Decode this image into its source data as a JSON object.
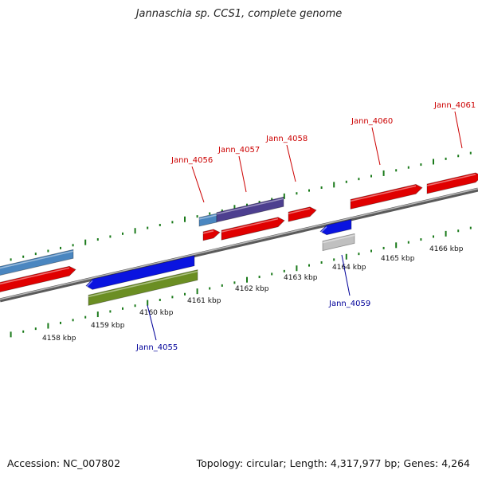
{
  "title": "Jannaschia sp. CCS1, complete genome",
  "accession": "Accession: NC_007802",
  "genome_info": "Topology: circular; Length: 4,317,977 bp; Genes: 4,264",
  "colors": {
    "backbone": "#8c8c8c",
    "ticks": "#1a7a1a",
    "label_forward": "#cc0000",
    "label_reverse": "#000099",
    "gene_red": "#e00000",
    "gene_blue": "#0a14e0",
    "gene_steelblue": "#4a86c0",
    "gene_purple": "#4d3f8f",
    "gene_olive": "#6b8e23",
    "gene_gray": "#c0c0c0"
  },
  "scale_labels": [
    "4158 kbp",
    "4159 kbp",
    "4160 kbp",
    "4161 kbp",
    "4162 kbp",
    "4163 kbp",
    "4164 kbp",
    "4165 kbp",
    "4166 kbp"
  ],
  "gene_labels": [
    {
      "text": "Jann_4055",
      "strand": "reverse"
    },
    {
      "text": "Jann_4056",
      "strand": "forward"
    },
    {
      "text": "Jann_4057",
      "strand": "forward"
    },
    {
      "text": "Jann_4058",
      "strand": "forward"
    },
    {
      "text": "Jann_4059",
      "strand": "reverse"
    },
    {
      "text": "Jann_4060",
      "strand": "forward"
    },
    {
      "text": "Jann_4061",
      "strand": "forward"
    }
  ]
}
